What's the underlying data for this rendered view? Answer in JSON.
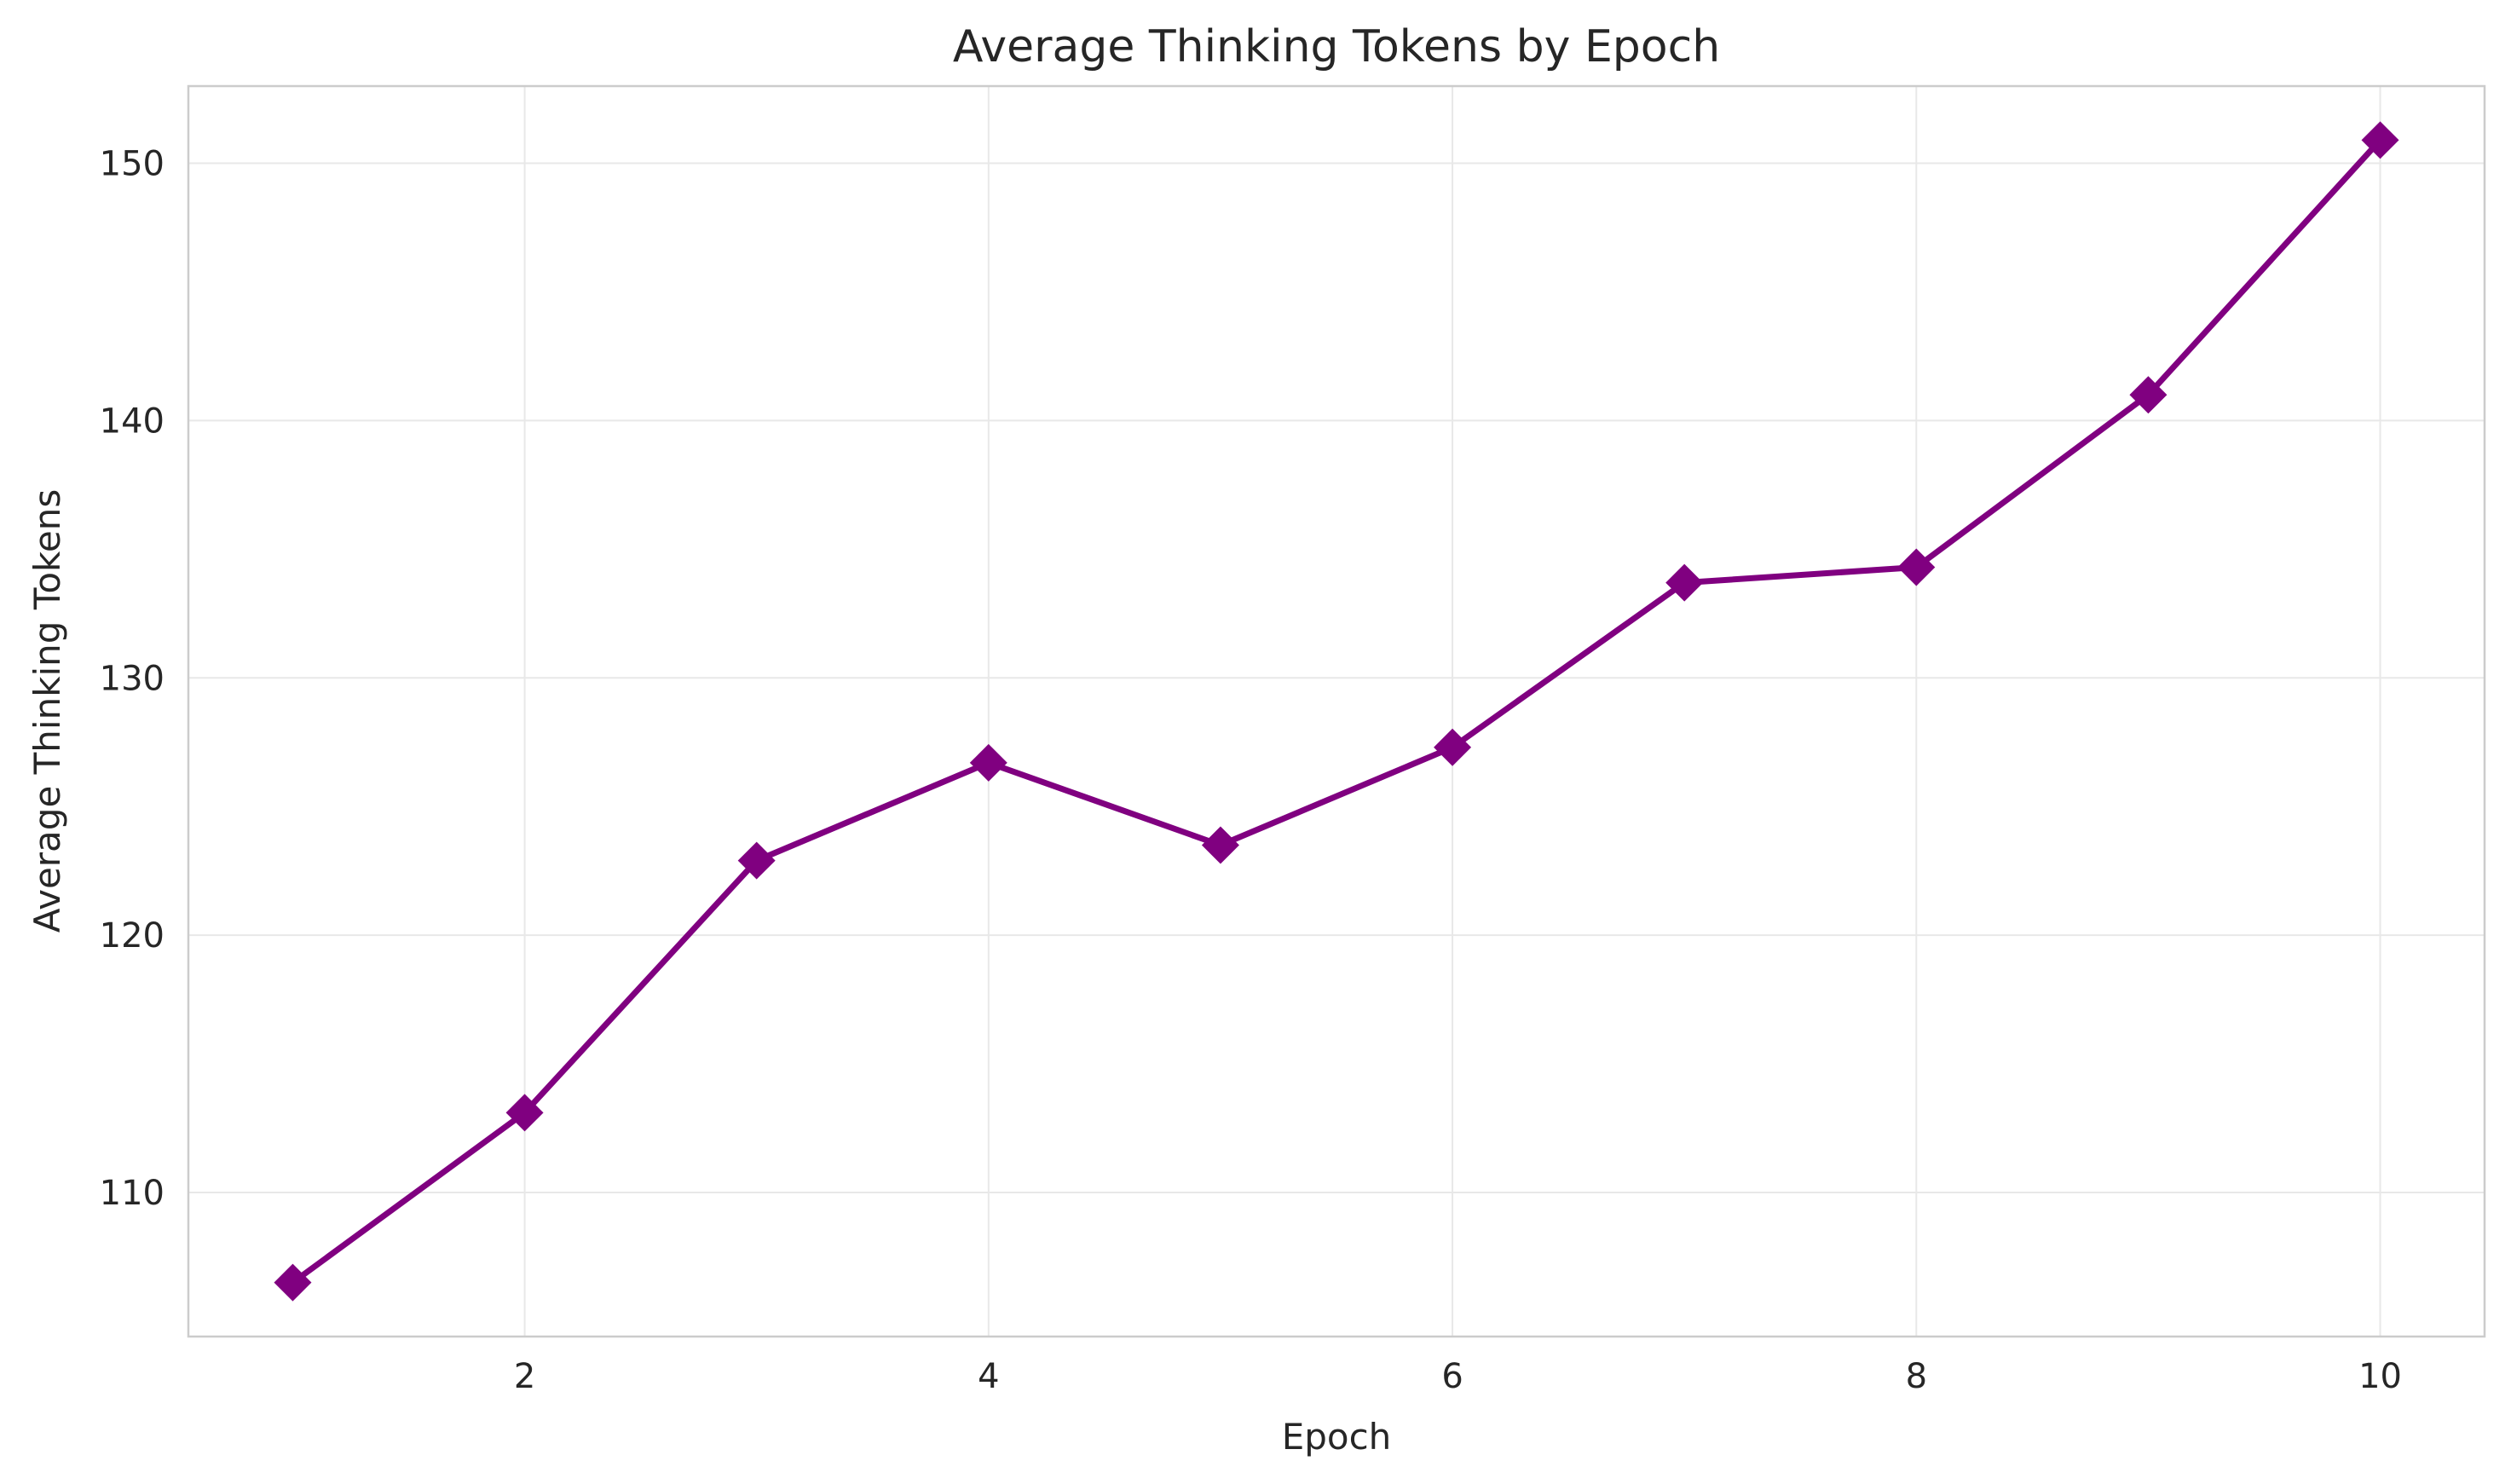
{
  "chart_data": {
    "type": "line",
    "title": "Average Thinking Tokens by Epoch",
    "xlabel": "Epoch",
    "ylabel": "Average Thinking Tokens",
    "x": [
      1,
      2,
      3,
      4,
      5,
      6,
      7,
      8,
      9,
      10
    ],
    "series": [
      {
        "values": [
          106.5,
          113.1,
          122.9,
          126.7,
          123.5,
          127.3,
          133.7,
          134.3,
          141.0,
          150.9
        ],
        "color": "#800080",
        "marker": "diamond"
      }
    ],
    "xlim": [
      0.55,
      10.45
    ],
    "ylim": [
      104.4,
      153.0
    ],
    "xticks": [
      2,
      4,
      6,
      8,
      10
    ],
    "yticks": [
      110,
      120,
      130,
      140,
      150
    ],
    "grid": true
  }
}
